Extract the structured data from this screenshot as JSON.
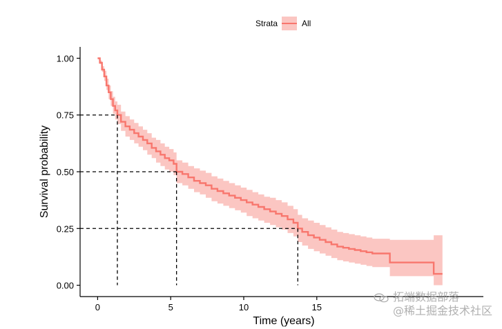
{
  "chart_data": {
    "type": "line",
    "subtype": "kaplan-meier",
    "xlabel": "Time (years)",
    "ylabel": "Survival probability",
    "xlim": [
      -1.2,
      26.4
    ],
    "ylim": [
      -0.05,
      1.05
    ],
    "xticks": [
      0,
      5,
      10,
      15
    ],
    "xtick_labels": [
      "0",
      "5",
      "10",
      "15"
    ],
    "yticks": [
      0,
      0.25,
      0.5,
      0.75,
      1
    ],
    "ytick_labels": [
      "0.00",
      "0.25",
      "0.50",
      "0.75",
      "1.00"
    ],
    "legend": {
      "title": "Strata",
      "entries": [
        "All"
      ],
      "placement": "top"
    },
    "colors": {
      "line": "#f8766d",
      "band": "#fbc6c2",
      "reference": "#000000",
      "axis": "#000000",
      "text": "#000000",
      "watermark": "#a0a0a0"
    },
    "median_lines": [
      {
        "survival": 0.75,
        "time": 1.35
      },
      {
        "survival": 0.5,
        "time": 5.4
      },
      {
        "survival": 0.25,
        "time": 13.7
      }
    ],
    "series": [
      {
        "name": "All",
        "x": [
          0,
          0.15,
          0.3,
          0.45,
          0.6,
          0.75,
          0.9,
          1.05,
          1.2,
          1.35,
          1.6,
          1.9,
          2.2,
          2.5,
          2.8,
          3.1,
          3.4,
          3.7,
          4.0,
          4.3,
          4.6,
          4.9,
          5.2,
          5.4,
          5.8,
          6.2,
          6.6,
          7.0,
          7.4,
          7.8,
          8.2,
          8.6,
          9.0,
          9.4,
          9.8,
          10.2,
          10.6,
          11.0,
          11.4,
          11.8,
          12.2,
          12.6,
          13.0,
          13.4,
          13.7,
          14.0,
          14.4,
          14.8,
          15.2,
          15.6,
          16.0,
          16.4,
          16.8,
          17.2,
          17.6,
          18.0,
          18.4,
          18.8,
          19.2,
          19.6,
          20.0,
          20.5,
          21.0,
          21.5,
          22.0,
          22.5,
          23.0,
          23.6
        ],
        "y": [
          1.0,
          0.98,
          0.95,
          0.92,
          0.88,
          0.85,
          0.82,
          0.79,
          0.77,
          0.75,
          0.72,
          0.7,
          0.685,
          0.67,
          0.655,
          0.64,
          0.625,
          0.605,
          0.59,
          0.575,
          0.56,
          0.55,
          0.535,
          0.5,
          0.49,
          0.475,
          0.46,
          0.45,
          0.44,
          0.425,
          0.415,
          0.405,
          0.395,
          0.385,
          0.375,
          0.365,
          0.355,
          0.345,
          0.335,
          0.325,
          0.315,
          0.305,
          0.29,
          0.275,
          0.25,
          0.235,
          0.22,
          0.21,
          0.2,
          0.19,
          0.18,
          0.17,
          0.165,
          0.16,
          0.155,
          0.15,
          0.145,
          0.14,
          0.14,
          0.14,
          0.1,
          0.1,
          0.1,
          0.1,
          0.1,
          0.1,
          0.05,
          0.05
        ],
        "lower": [
          1.0,
          0.975,
          0.94,
          0.9,
          0.86,
          0.82,
          0.79,
          0.755,
          0.73,
          0.71,
          0.68,
          0.655,
          0.64,
          0.625,
          0.61,
          0.595,
          0.575,
          0.56,
          0.54,
          0.525,
          0.51,
          0.5,
          0.485,
          0.45,
          0.44,
          0.425,
          0.41,
          0.4,
          0.385,
          0.37,
          0.36,
          0.35,
          0.34,
          0.33,
          0.32,
          0.305,
          0.295,
          0.285,
          0.275,
          0.265,
          0.255,
          0.245,
          0.23,
          0.215,
          0.19,
          0.175,
          0.16,
          0.15,
          0.14,
          0.13,
          0.12,
          0.11,
          0.105,
          0.1,
          0.095,
          0.09,
          0.085,
          0.08,
          0.08,
          0.08,
          0.04,
          0.04,
          0.04,
          0.04,
          0.04,
          0.04,
          0.0,
          0.0
        ],
        "upper": [
          1.0,
          0.99,
          0.965,
          0.945,
          0.91,
          0.88,
          0.855,
          0.83,
          0.81,
          0.795,
          0.765,
          0.745,
          0.73,
          0.715,
          0.7,
          0.685,
          0.67,
          0.65,
          0.64,
          0.625,
          0.61,
          0.6,
          0.585,
          0.55,
          0.54,
          0.525,
          0.515,
          0.505,
          0.495,
          0.48,
          0.47,
          0.46,
          0.45,
          0.44,
          0.43,
          0.42,
          0.41,
          0.4,
          0.39,
          0.385,
          0.375,
          0.365,
          0.35,
          0.335,
          0.31,
          0.295,
          0.285,
          0.275,
          0.265,
          0.255,
          0.245,
          0.235,
          0.23,
          0.225,
          0.22,
          0.215,
          0.21,
          0.205,
          0.205,
          0.205,
          0.2,
          0.2,
          0.2,
          0.2,
          0.2,
          0.2,
          0.22,
          0.22
        ]
      }
    ]
  },
  "watermark": {
    "line1": "拓端数据部落",
    "line2": "@稀土掘金技术社区",
    "icon": "wechat-icon"
  }
}
